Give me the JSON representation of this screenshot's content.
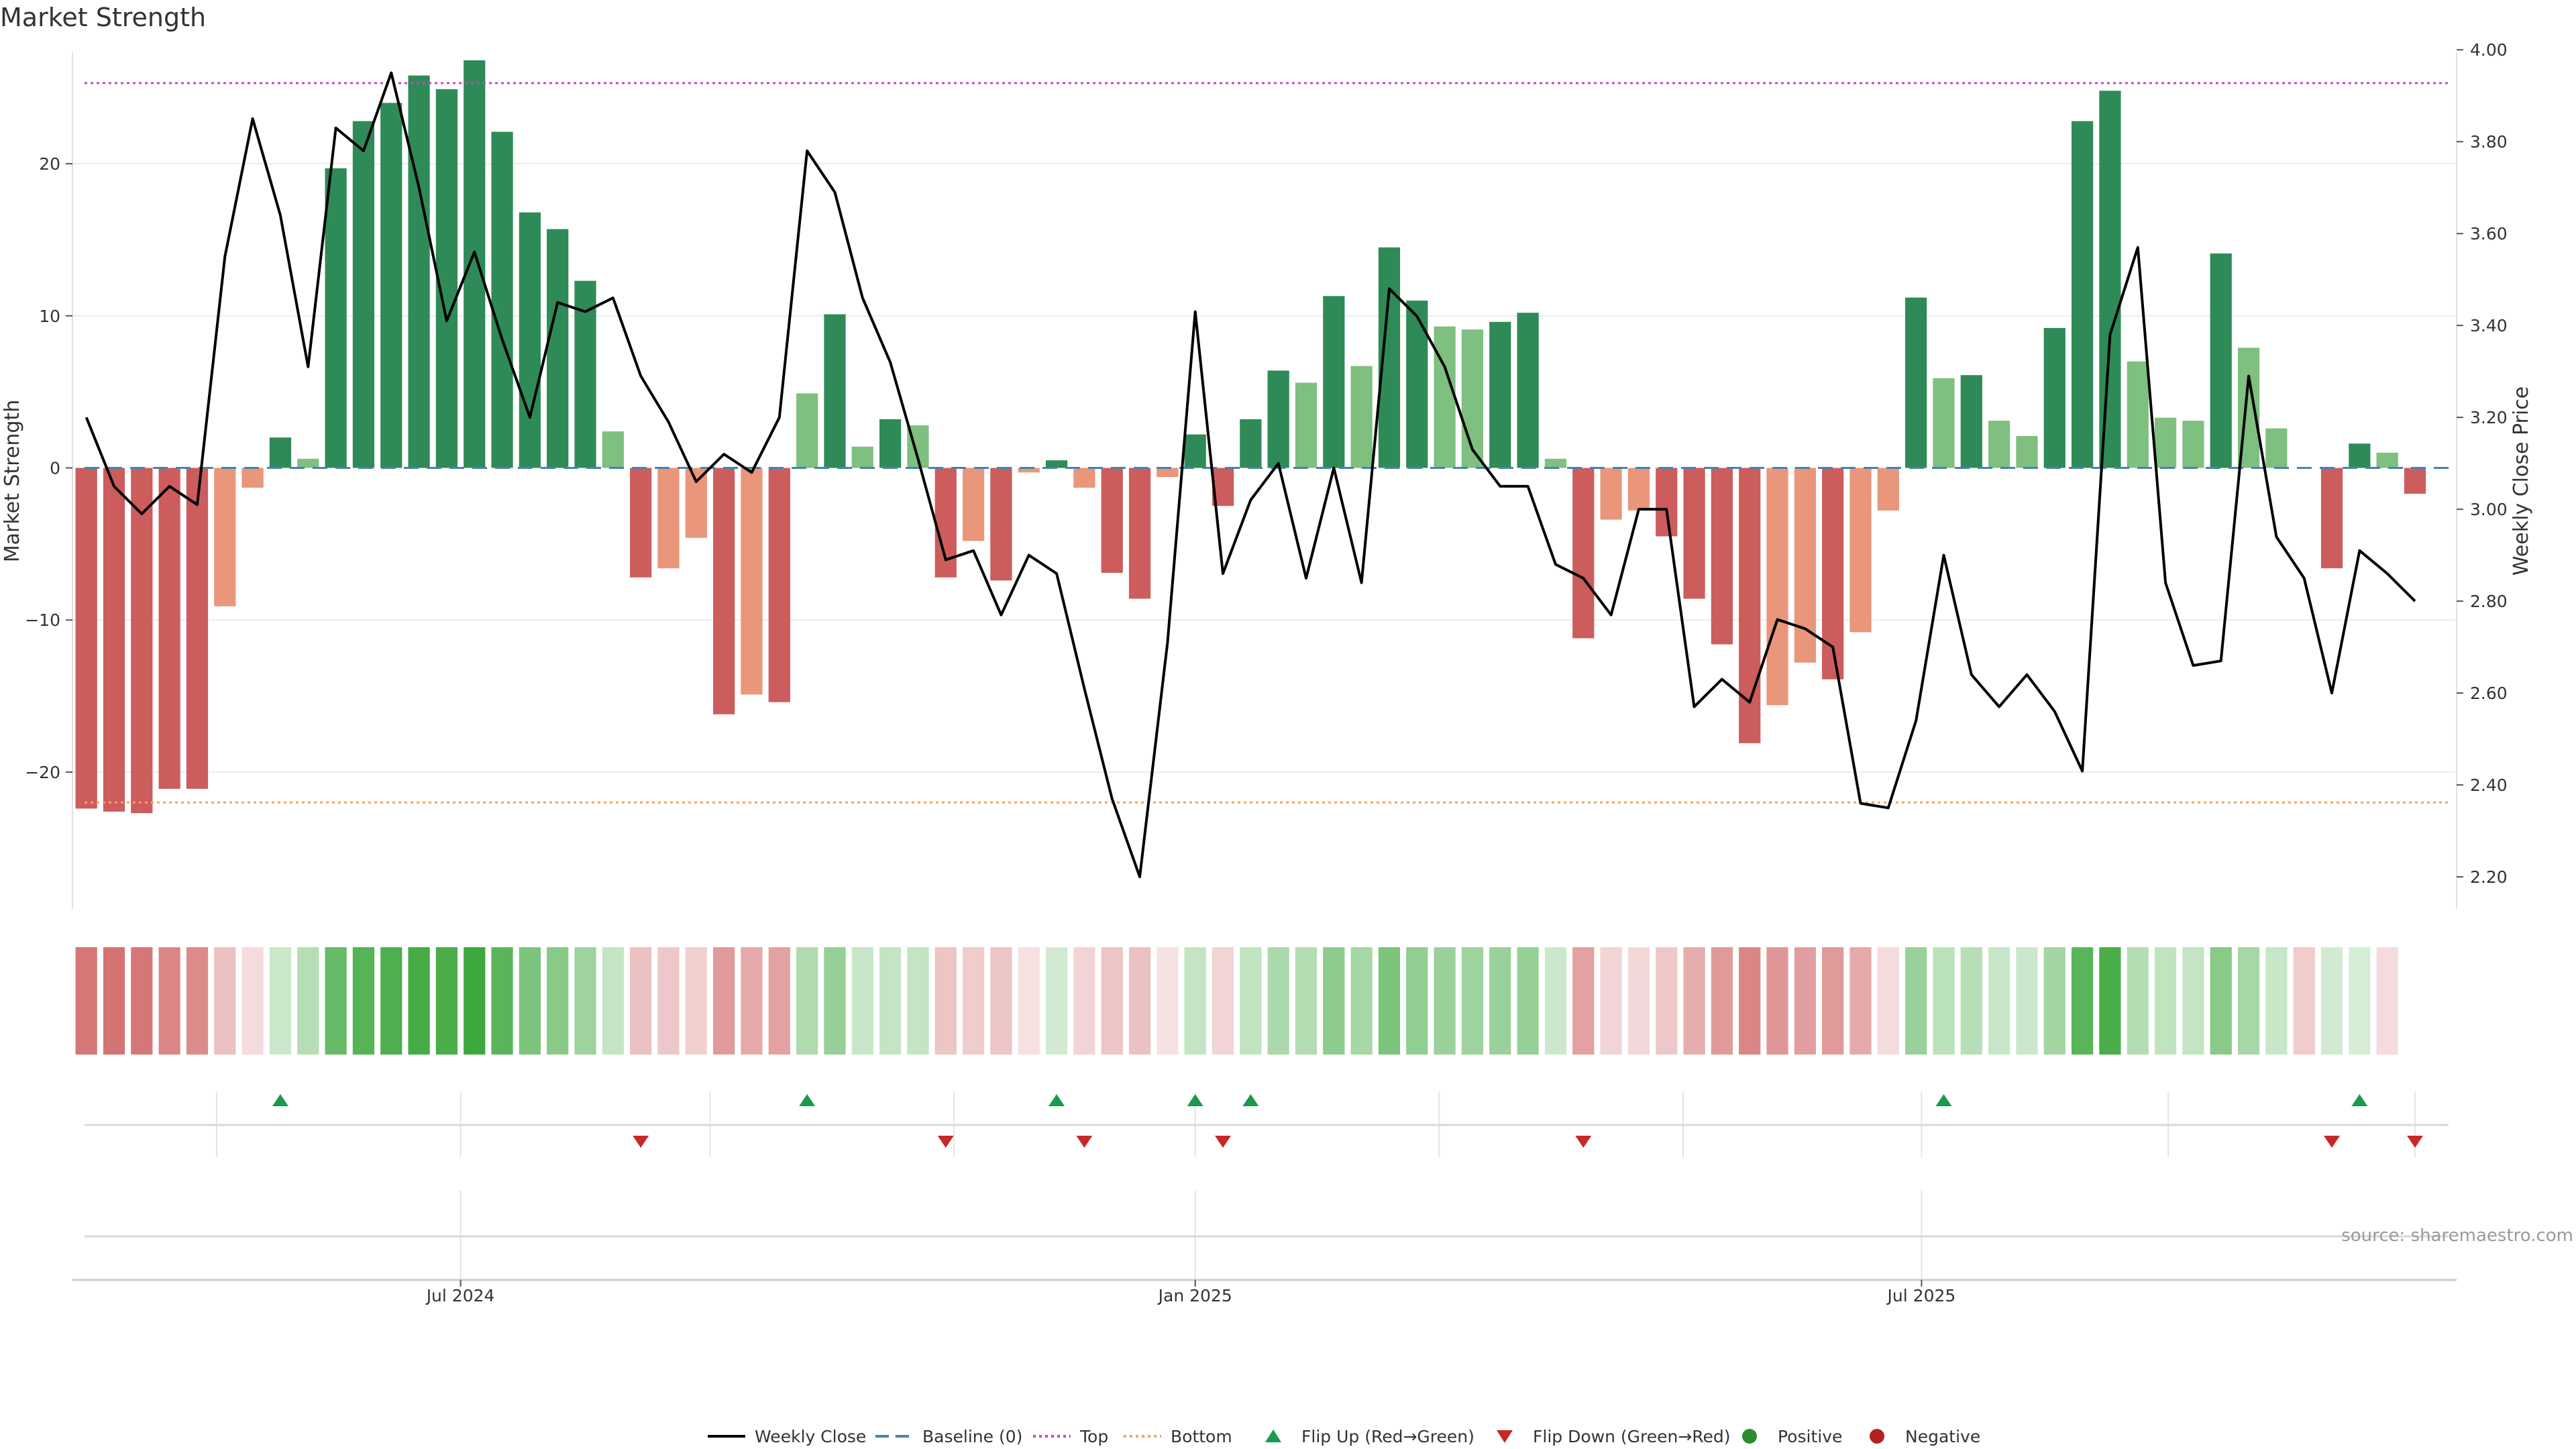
{
  "title": "Market Strength",
  "source": "source: sharemaestro.com",
  "colors": {
    "strong_pos": "#2e8b57",
    "weak_pos": "#7fbf7f",
    "strong_neg": "#cd5c5c",
    "weak_neg": "#e9967a",
    "close_line": "#000000",
    "baseline": "#4682b4",
    "top_line": "#cc44cc",
    "bottom_line": "#f4a460",
    "flip_up": "#1a9a4a",
    "flip_down": "#c62828",
    "positive_dot": "#2e8b2e",
    "negative_dot": "#b22222",
    "heat_pos": "#2ca02c",
    "heat_neg": "#c43c3c"
  },
  "chart_data": {
    "type": "bar",
    "title": "Market Strength",
    "weeks": 86,
    "ylabel_left": "Market Strength",
    "ylabel_right": "Weekly Close Price",
    "ylim_left": [
      -29,
      29
    ],
    "ylim_right": [
      2.13,
      4.05
    ],
    "yticks_left": [
      -20,
      -10,
      0,
      10,
      20
    ],
    "yticks_left_labels": [
      "−20",
      "−10",
      "0",
      "10",
      "20"
    ],
    "yticks_right": [
      2.2,
      2.4,
      2.6,
      2.8,
      3.0,
      3.2,
      3.4,
      3.6,
      3.8,
      4.0
    ],
    "yticks_right_labels": [
      "2.20",
      "2.40",
      "2.60",
      "2.80",
      "3.00",
      "3.20",
      "3.40",
      "3.60",
      "3.80",
      "4.00"
    ],
    "top_level": 25.3,
    "bottom_level": -22.0,
    "baseline": 0,
    "x_date_ticks": [
      {
        "week": 13.5,
        "label": "Jul 2024"
      },
      {
        "week": 40,
        "label": "Jan 2025"
      },
      {
        "week": 66.2,
        "label": "Jul 2025"
      }
    ],
    "month_gridlines": [
      4.7,
      13.5,
      22.5,
      31.3,
      40,
      48.8,
      57.6,
      66.2,
      75.1,
      84
    ],
    "strength": [
      -22.4,
      -22.6,
      -22.7,
      -21.1,
      -21.1,
      -9.1,
      -1.3,
      2.0,
      0.6,
      19.7,
      22.8,
      24.0,
      25.8,
      24.9,
      26.8,
      22.1,
      16.8,
      15.7,
      12.3,
      2.4,
      -7.2,
      -6.6,
      -4.6,
      -16.2,
      -14.9,
      -15.4,
      4.9,
      10.1,
      1.4,
      3.2,
      2.8,
      -7.2,
      -4.8,
      -7.4,
      -0.3,
      0.5,
      -1.3,
      -6.9,
      -8.6,
      -0.6,
      2.2,
      -2.5,
      3.2,
      6.4,
      5.6,
      11.3,
      6.7,
      14.5,
      11.0,
      9.3,
      9.1,
      9.6,
      10.2,
      0.6,
      -11.2,
      -3.4,
      -2.8,
      -4.5,
      -8.6,
      -11.6,
      -18.1,
      -15.6,
      -12.8,
      -13.9,
      -10.8,
      -2.8,
      11.2,
      5.9,
      6.1,
      3.1,
      2.1,
      9.2,
      22.8,
      24.8,
      7.0,
      3.3,
      3.1,
      14.1,
      7.9,
      2.6,
      0.0,
      -6.6,
      1.6,
      1.0,
      -1.7,
      0.0
    ],
    "weekly_close": [
      3.2,
      3.05,
      2.99,
      3.05,
      3.01,
      3.55,
      3.85,
      3.64,
      3.31,
      3.83,
      3.78,
      3.95,
      3.7,
      3.41,
      3.56,
      3.37,
      3.2,
      3.45,
      3.43,
      3.46,
      3.29,
      3.19,
      3.06,
      3.12,
      3.08,
      3.2,
      3.78,
      3.69,
      3.46,
      3.32,
      3.11,
      2.89,
      2.91,
      2.77,
      2.9,
      2.86,
      2.61,
      2.37,
      2.2,
      2.71,
      3.43,
      2.86,
      3.02,
      3.1,
      2.85,
      3.09,
      2.84,
      3.48,
      3.42,
      3.31,
      3.13,
      3.05,
      3.05,
      2.88,
      2.85,
      2.77,
      3.0,
      3.0,
      2.57,
      2.63,
      2.58,
      2.76,
      2.74,
      2.7,
      2.36,
      2.35,
      2.54,
      2.9,
      2.64,
      2.57,
      2.64,
      2.56,
      2.43,
      3.38,
      3.57,
      2.84,
      2.66,
      2.67,
      3.29,
      2.94,
      2.85,
      2.6,
      2.91,
      2.86,
      2.8,
      null
    ],
    "heat": [
      -0.7,
      -0.72,
      -0.7,
      -0.62,
      -0.6,
      -0.32,
      -0.18,
      0.25,
      0.35,
      0.72,
      0.8,
      0.84,
      0.88,
      0.86,
      0.92,
      0.78,
      0.62,
      0.56,
      0.46,
      0.28,
      -0.32,
      -0.28,
      -0.24,
      -0.52,
      -0.44,
      -0.48,
      0.38,
      0.5,
      0.26,
      0.28,
      0.28,
      -0.3,
      -0.26,
      -0.3,
      -0.16,
      0.22,
      -0.22,
      -0.3,
      -0.32,
      -0.15,
      0.28,
      -0.22,
      0.3,
      0.4,
      0.36,
      0.54,
      0.42,
      0.62,
      0.52,
      0.48,
      0.46,
      0.48,
      0.5,
      0.24,
      -0.48,
      -0.22,
      -0.2,
      -0.28,
      -0.42,
      -0.52,
      -0.62,
      -0.54,
      -0.5,
      -0.52,
      -0.44,
      -0.18,
      0.48,
      0.32,
      0.34,
      0.26,
      0.24,
      0.44,
      0.78,
      0.86,
      0.36,
      0.3,
      0.28,
      0.56,
      0.42,
      0.26,
      -0.26,
      0.22,
      0.2,
      -0.18,
      0,
      0
    ],
    "flip_up_weeks": [
      7,
      26,
      35,
      40,
      42,
      67,
      82
    ],
    "flip_down_weeks": [
      20,
      31,
      36,
      41,
      54,
      81,
      84
    ]
  },
  "legend": [
    {
      "key": "weekly_close",
      "label": "Weekly Close",
      "symbol": "solid-line",
      "color": "#000000"
    },
    {
      "key": "baseline",
      "label": "Baseline (0)",
      "symbol": "dashed-line",
      "color": "#4682b4"
    },
    {
      "key": "top",
      "label": "Top",
      "symbol": "dotted-line",
      "color": "#cc44cc"
    },
    {
      "key": "bottom",
      "label": "Bottom",
      "symbol": "dotted-line",
      "color": "#f4a460"
    },
    {
      "key": "flip_up",
      "label": "Flip Up (Red→Green)",
      "symbol": "triangle-up",
      "color": "#1a9a4a"
    },
    {
      "key": "flip_down",
      "label": "Flip Down (Green→Red)",
      "symbol": "triangle-down",
      "color": "#c62828"
    },
    {
      "key": "positive",
      "label": "Positive",
      "symbol": "dot",
      "color": "#2e8b2e"
    },
    {
      "key": "negative",
      "label": "Negative",
      "symbol": "dot",
      "color": "#b22222"
    }
  ]
}
